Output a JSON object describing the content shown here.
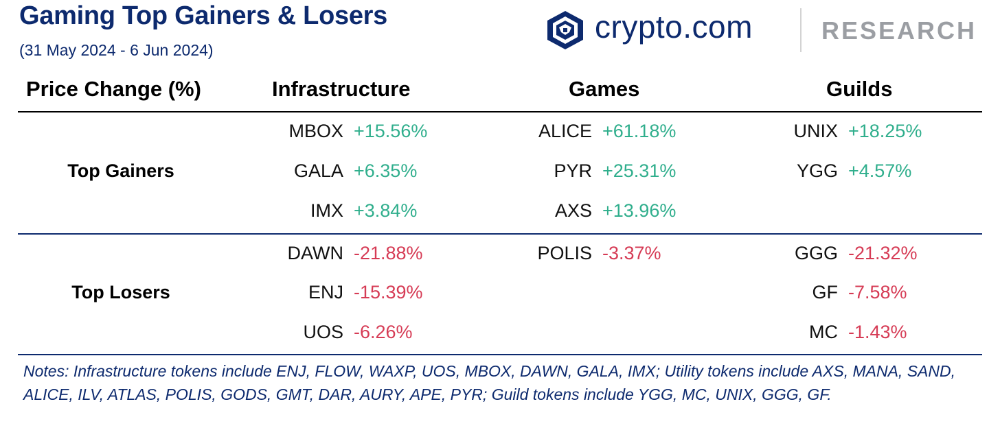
{
  "header": {
    "title": "Gaming Top Gainers & Losers",
    "subtitle": "(31 May 2024 - 6 Jun 2024)"
  },
  "brand": {
    "name": "crypto.com",
    "tagline": "RESEARCH",
    "logo_icon": "crypto-com-lion-shield-icon"
  },
  "table": {
    "columns": [
      "Price Change (%)",
      "Infrastructure",
      "Games",
      "Guilds"
    ],
    "sections": {
      "gainers": {
        "label": "Top Gainers",
        "infrastructure": [
          {
            "token": "MBOX",
            "change": "+15.56%"
          },
          {
            "token": "GALA",
            "change": "+6.35%"
          },
          {
            "token": "IMX",
            "change": "+3.84%"
          }
        ],
        "games": [
          {
            "token": "ALICE",
            "change": "+61.18%"
          },
          {
            "token": "PYR",
            "change": "+25.31%"
          },
          {
            "token": "AXS",
            "change": "+13.96%"
          }
        ],
        "guilds": [
          {
            "token": "UNIX",
            "change": "+18.25%"
          },
          {
            "token": "YGG",
            "change": "+4.57%"
          }
        ]
      },
      "losers": {
        "label": "Top Losers",
        "infrastructure": [
          {
            "token": "DAWN",
            "change": "-21.88%"
          },
          {
            "token": "ENJ",
            "change": "-15.39%"
          },
          {
            "token": "UOS",
            "change": "-6.26%"
          }
        ],
        "games": [
          {
            "token": "POLIS",
            "change": "-3.37%"
          }
        ],
        "guilds": [
          {
            "token": "GGG",
            "change": "-21.32%"
          },
          {
            "token": "GF",
            "change": "-7.58%"
          },
          {
            "token": "MC",
            "change": "-1.43%"
          }
        ]
      }
    }
  },
  "notes": "Notes: Infrastructure tokens include ENJ, FLOW, WAXP, UOS, MBOX, DAWN, GALA, IMX; Utility tokens include AXS, MANA, SAND, ALICE, ILV, ATLAS, POLIS, GODS, GMT, DAR, AURY, APE, PYR; Guild tokens include YGG, MC, UNIX, GGG, GF.",
  "colors": {
    "navy": "#0d2a6e",
    "gain": "#2fae8c",
    "loss": "#d63b55",
    "muted": "#9b9ea3"
  }
}
